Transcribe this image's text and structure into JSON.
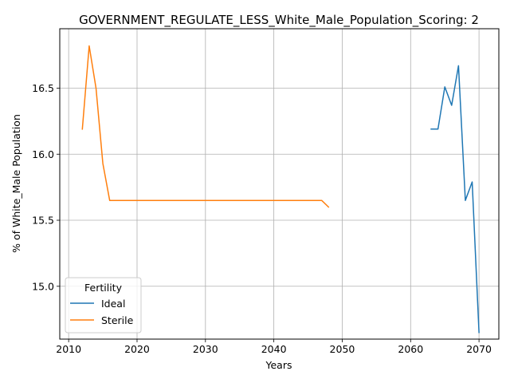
{
  "chart_data": {
    "type": "line",
    "title": "GOVERNMENT_REGULATE_LESS_White_Male_Population_Scoring: 2",
    "xlabel": "Years",
    "ylabel": "% of White_Male Population",
    "xlim": [
      2008.7,
      2072.9
    ],
    "ylim": [
      14.6,
      16.95
    ],
    "xticks": [
      2010,
      2020,
      2030,
      2040,
      2050,
      2060,
      2070
    ],
    "yticks": [
      15.0,
      15.5,
      16.0,
      16.5
    ],
    "ytick_labels": [
      "15.0",
      "15.5",
      "16.0",
      "16.5"
    ],
    "grid": true,
    "legend": {
      "title": "Fertility",
      "placement": "lower-left"
    },
    "series": [
      {
        "name": "Ideal",
        "color": "#1f77b4",
        "x": [
          2063,
          2064,
          2065,
          2066,
          2067,
          2068,
          2069,
          2070
        ],
        "y": [
          16.19,
          16.19,
          16.51,
          16.37,
          16.67,
          15.65,
          15.79,
          14.65
        ]
      },
      {
        "name": "Sterile",
        "color": "#ff7f0e",
        "x": [
          2012,
          2013,
          2014,
          2015,
          2016,
          2017,
          2018,
          2019,
          2020,
          2021,
          2022,
          2023,
          2024,
          2025,
          2026,
          2027,
          2028,
          2029,
          2030,
          2031,
          2032,
          2033,
          2034,
          2035,
          2036,
          2037,
          2038,
          2039,
          2040,
          2041,
          2042,
          2043,
          2044,
          2045,
          2046,
          2047,
          2048
        ],
        "y": [
          16.19,
          16.82,
          16.5,
          15.93,
          15.65,
          15.65,
          15.65,
          15.65,
          15.65,
          15.65,
          15.65,
          15.65,
          15.65,
          15.65,
          15.65,
          15.65,
          15.65,
          15.65,
          15.65,
          15.65,
          15.65,
          15.65,
          15.65,
          15.65,
          15.65,
          15.65,
          15.65,
          15.65,
          15.65,
          15.65,
          15.65,
          15.65,
          15.65,
          15.65,
          15.65,
          15.65,
          15.6
        ]
      }
    ]
  }
}
